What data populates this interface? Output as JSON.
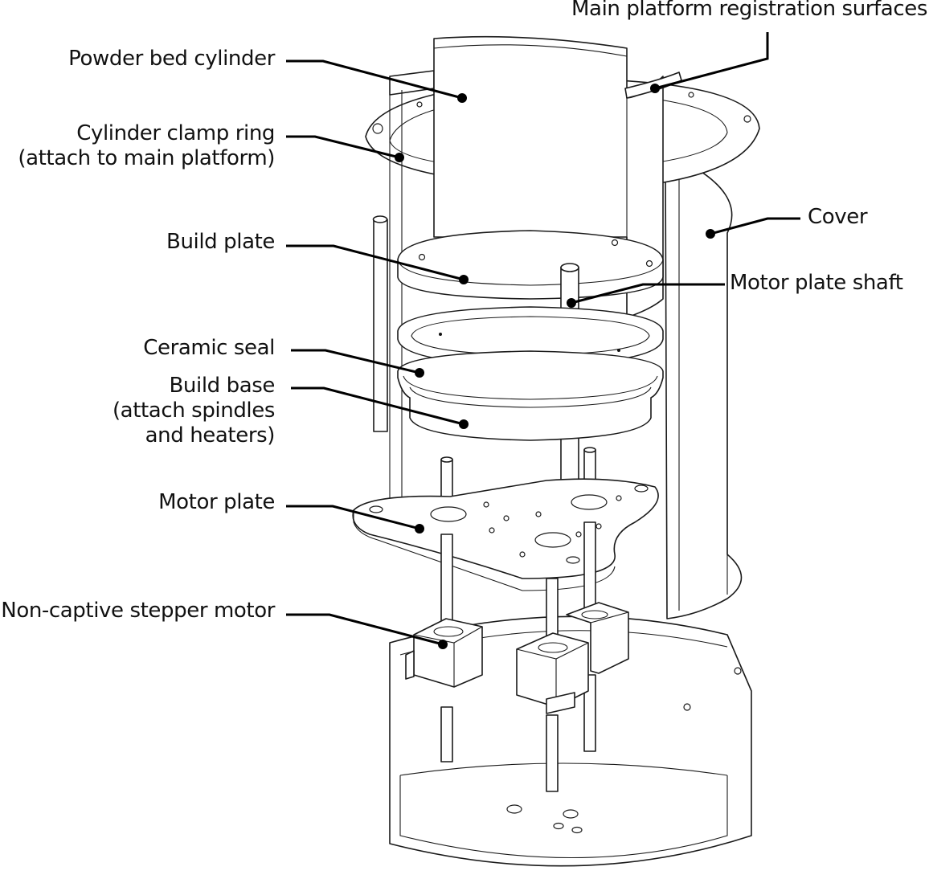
{
  "labels": {
    "powder_bed_cylinder": "Powder bed cylinder",
    "registration_surfaces": "Main platform registration surfaces",
    "clamp_ring_line1": "Cylinder clamp ring",
    "clamp_ring_line2": "(attach to main platform)",
    "cover": "Cover",
    "build_plate": "Build plate",
    "motor_plate_shaft": "Motor plate shaft",
    "ceramic_seal": "Ceramic seal",
    "build_base_line1": "Build base",
    "build_base_line2": "(attach spindles",
    "build_base_line3": "and heaters)",
    "motor_plate": "Motor plate",
    "stepper_motor": "Non-captive stepper motor"
  }
}
